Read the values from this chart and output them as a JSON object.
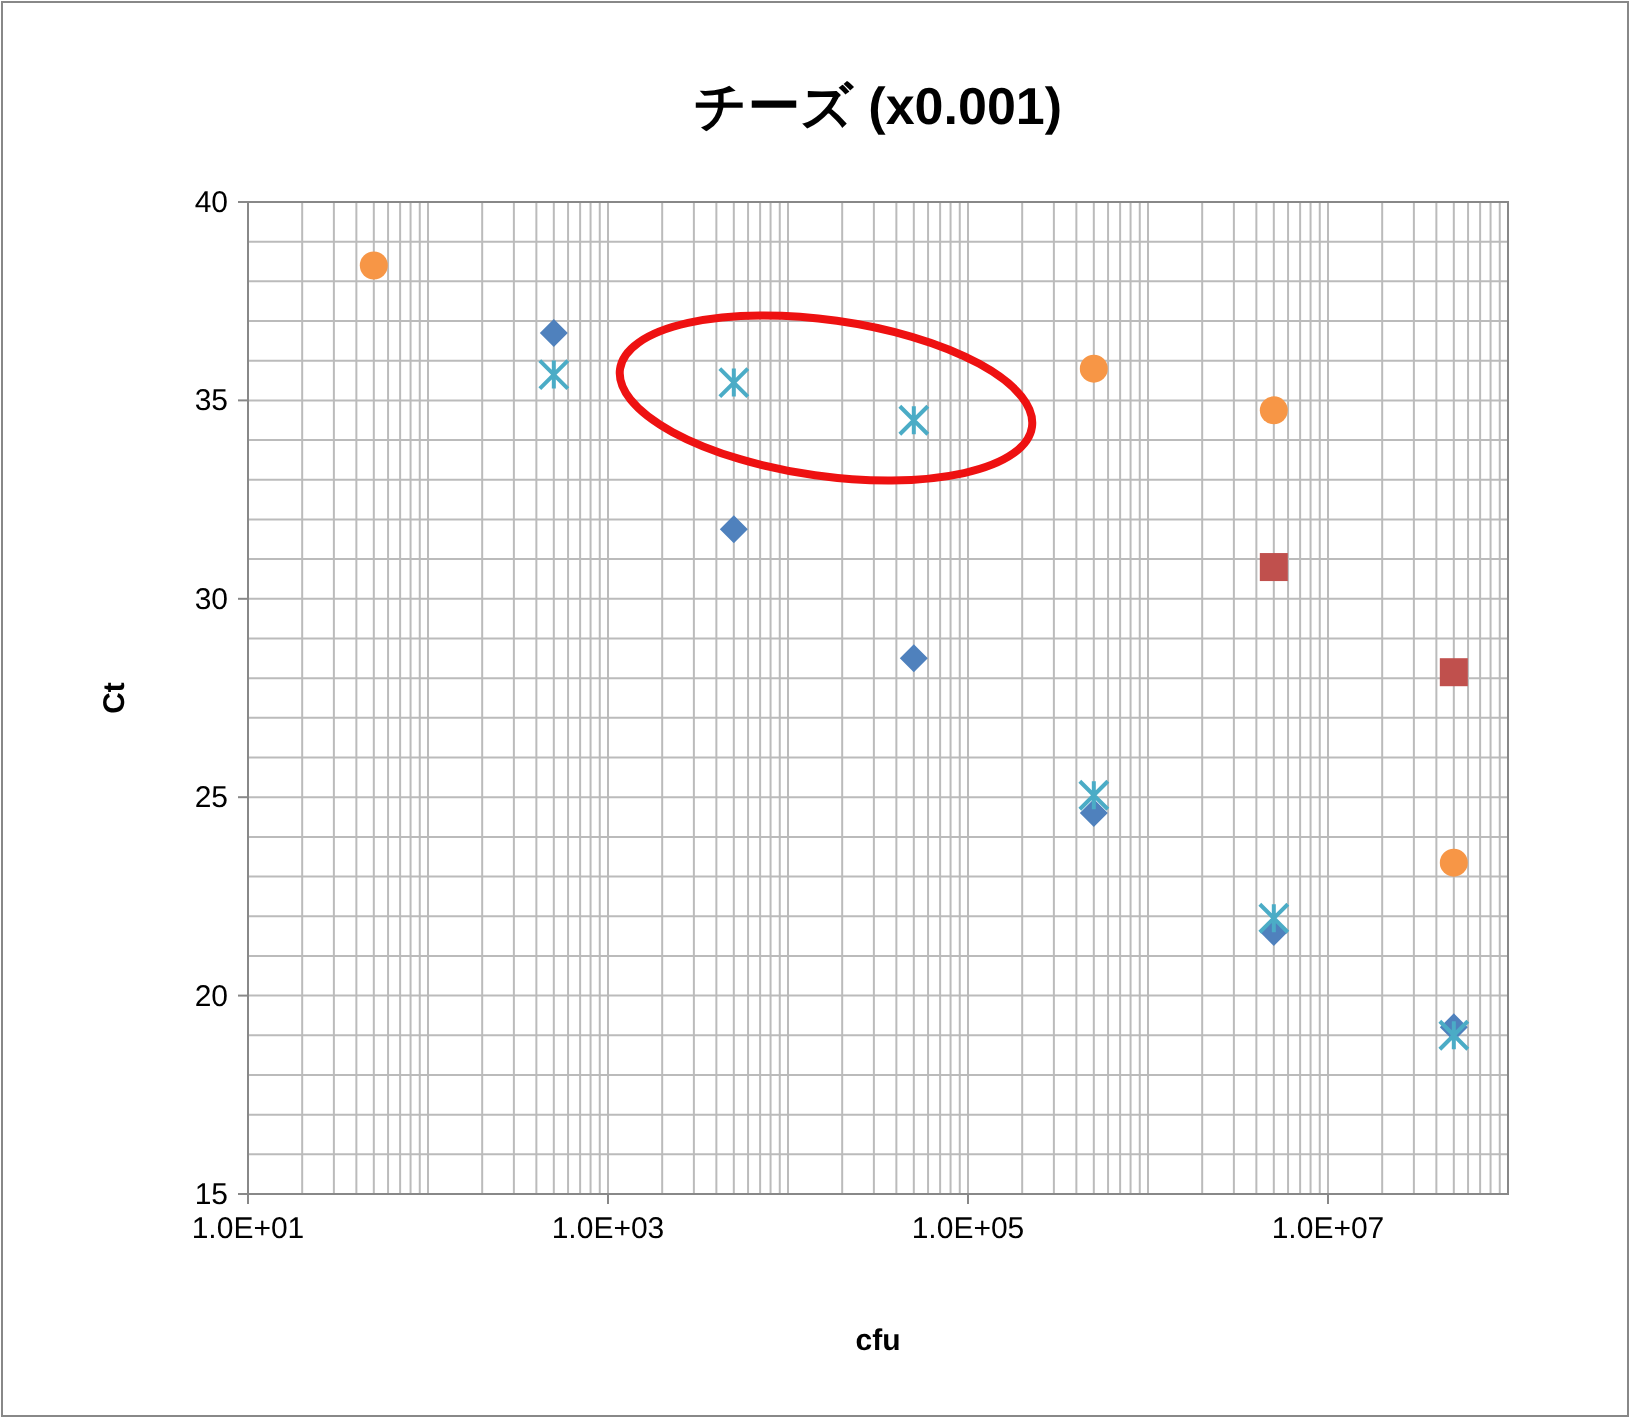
{
  "chart_data": {
    "type": "scatter",
    "title": "チーズ (x0.001)",
    "xlabel": "cfu",
    "ylabel": "Ct",
    "log": "x",
    "grid": true,
    "xlim": [
      10,
      100000000
    ],
    "ylim": [
      15,
      40
    ],
    "yticks": [
      15,
      {
        "value": 16,
        "label": null
      },
      {
        "value": 17,
        "label": null
      },
      {
        "value": 18,
        "label": null
      },
      {
        "value": 19,
        "label": null
      },
      20,
      {
        "value": 21,
        "label": null
      },
      {
        "value": 22,
        "label": null
      },
      {
        "value": 23,
        "label": null
      },
      {
        "value": 24,
        "label": null
      },
      25,
      {
        "value": 26,
        "label": null
      },
      {
        "value": 27,
        "label": null
      },
      {
        "value": 28,
        "label": null
      },
      {
        "value": 29,
        "label": null
      },
      30,
      {
        "value": 31,
        "label": null
      },
      {
        "value": 32,
        "label": null
      },
      {
        "value": 33,
        "label": null
      },
      {
        "value": 34,
        "label": null
      },
      35,
      {
        "value": 36,
        "label": null
      },
      {
        "value": 37,
        "label": null
      },
      {
        "value": 38,
        "label": null
      },
      {
        "value": 39,
        "label": null
      },
      40
    ],
    "xticks": [
      {
        "value": 10,
        "label": "1.0E+01"
      },
      {
        "value": 20,
        "label": null
      },
      {
        "value": 30,
        "label": null
      },
      {
        "value": 40,
        "label": null
      },
      {
        "value": 50,
        "label": null
      },
      {
        "value": 60,
        "label": null
      },
      {
        "value": 70,
        "label": null
      },
      {
        "value": 80,
        "label": null
      },
      {
        "value": 90,
        "label": null
      },
      {
        "value": 100,
        "label": null
      },
      {
        "value": 200,
        "label": null
      },
      {
        "value": 300,
        "label": null
      },
      {
        "value": 400,
        "label": null
      },
      {
        "value": 500,
        "label": null
      },
      {
        "value": 600,
        "label": null
      },
      {
        "value": 700,
        "label": null
      },
      {
        "value": 800,
        "label": null
      },
      {
        "value": 900,
        "label": null
      },
      {
        "value": 1000,
        "label": "1.0E+03"
      },
      {
        "value": 2000,
        "label": null
      },
      {
        "value": 3000,
        "label": null
      },
      {
        "value": 4000,
        "label": null
      },
      {
        "value": 5000,
        "label": null
      },
      {
        "value": 6000,
        "label": null
      },
      {
        "value": 7000,
        "label": null
      },
      {
        "value": 8000,
        "label": null
      },
      {
        "value": 9000,
        "label": null
      },
      {
        "value": 10000,
        "label": null
      },
      {
        "value": 20000,
        "label": null
      },
      {
        "value": 30000,
        "label": null
      },
      {
        "value": 40000,
        "label": null
      },
      {
        "value": 50000,
        "label": null
      },
      {
        "value": 60000,
        "label": null
      },
      {
        "value": 70000,
        "label": null
      },
      {
        "value": 80000,
        "label": null
      },
      {
        "value": 90000,
        "label": null
      },
      {
        "value": 100000,
        "label": "1.0E+05"
      },
      {
        "value": 200000,
        "label": null
      },
      {
        "value": 300000,
        "label": null
      },
      {
        "value": 400000,
        "label": null
      },
      {
        "value": 500000,
        "label": null
      },
      {
        "value": 600000,
        "label": null
      },
      {
        "value": 700000,
        "label": null
      },
      {
        "value": 800000,
        "label": null
      },
      {
        "value": 900000,
        "label": null
      },
      {
        "value": 1000000,
        "label": null
      },
      {
        "value": 2000000,
        "label": null
      },
      {
        "value": 3000000,
        "label": null
      },
      {
        "value": 4000000,
        "label": null
      },
      {
        "value": 5000000,
        "label": null
      },
      {
        "value": 6000000,
        "label": null
      },
      {
        "value": 7000000,
        "label": null
      },
      {
        "value": 8000000,
        "label": null
      },
      {
        "value": 9000000,
        "label": null
      },
      {
        "value": 10000000,
        "label": "1.0E+07"
      },
      {
        "value": 20000000,
        "label": null
      },
      {
        "value": 30000000,
        "label": null
      },
      {
        "value": 40000000,
        "label": null
      },
      {
        "value": 50000000,
        "label": null
      },
      {
        "value": 60000000,
        "label": null
      },
      {
        "value": 70000000,
        "label": null
      },
      {
        "value": 80000000,
        "label": null
      },
      {
        "value": 90000000,
        "label": null
      },
      {
        "value": 100000000,
        "label": null
      }
    ],
    "series": [
      {
        "color": "#f79646",
        "marker": "circle",
        "x": [
          50,
          500000,
          5000000,
          50000000
        ],
        "values": [
          38.4,
          35.8,
          34.75,
          23.35
        ]
      },
      {
        "color": "#c0504d",
        "marker": "square",
        "x": [
          5000000,
          50000000
        ],
        "values": [
          30.8,
          28.15
        ]
      },
      {
        "color": "#4f81bd",
        "marker": "diamond",
        "x": [
          500,
          5000,
          50000,
          500000,
          5000000,
          50000000
        ],
        "values": [
          36.7,
          31.75,
          28.5,
          24.6,
          21.6,
          19.2
        ]
      },
      {
        "color": "#4bacc6",
        "marker": "cross",
        "x": [
          500,
          5000,
          50000,
          500000,
          5000000,
          50000000
        ],
        "values": [
          35.65,
          35.45,
          34.5,
          25.05,
          21.95,
          19.0
        ]
      }
    ]
  }
}
